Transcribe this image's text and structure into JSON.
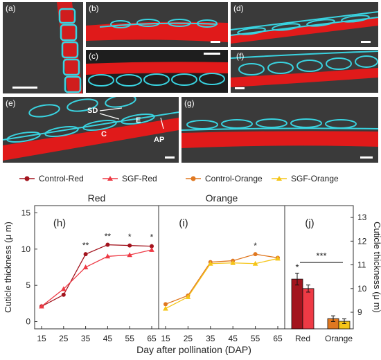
{
  "micrographs": {
    "a": {
      "label": "(a)"
    },
    "b": {
      "label": "(b)"
    },
    "c": {
      "label": "(c)"
    },
    "d": {
      "label": "(d)"
    },
    "e": {
      "label": "(e)",
      "annotations": [
        "SD",
        "E",
        "C",
        "AP"
      ]
    },
    "f": {
      "label": "(f)"
    },
    "g": {
      "label": "(g)"
    }
  },
  "colors": {
    "micrograph_background": "#3a3a3a",
    "cuticle": "#e01a1a",
    "cell_wall": "#39d3e0"
  },
  "chart_data": {
    "type": "line",
    "legend": [
      {
        "name": "Control-Red",
        "color": "#a3141e",
        "marker": "circle"
      },
      {
        "name": "SGF-Red",
        "color": "#ee3a45",
        "marker": "triangle"
      },
      {
        "name": "Control-Orange",
        "color": "#e07820",
        "marker": "circle"
      },
      {
        "name": "SGF-Orange",
        "color": "#f5c518",
        "marker": "triangle"
      }
    ],
    "ylabel_left": "Cuticle thickness (μ m)",
    "ylabel_right": "Cuticle thickness (μ m)",
    "xlabel": "Day after pollination (DAP)",
    "panels": [
      {
        "id": "h",
        "label": "(h)",
        "title": "Red",
        "x": [
          15,
          25,
          35,
          45,
          55,
          65
        ],
        "ylim": [
          -1,
          16
        ],
        "yticks": [
          0,
          5,
          10,
          15
        ],
        "series": [
          {
            "name": "Control-Red",
            "values": [
              2.1,
              3.7,
              9.3,
              10.6,
              10.5,
              10.4
            ],
            "err": [
              0.15,
              0.2,
              0.25,
              0.2,
              0.25,
              0.3
            ]
          },
          {
            "name": "SGF-Red",
            "values": [
              2.1,
              4.5,
              7.5,
              9.0,
              9.2,
              9.9
            ],
            "err": [
              0.15,
              0.2,
              0.3,
              0.2,
              0.2,
              0.3
            ]
          }
        ],
        "significance": [
          {
            "x": 35,
            "label": "**"
          },
          {
            "x": 45,
            "label": "**"
          },
          {
            "x": 55,
            "label": "*"
          },
          {
            "x": 65,
            "label": "*"
          }
        ]
      },
      {
        "id": "i",
        "label": "(i)",
        "title": "Orange",
        "x": [
          15,
          25,
          35,
          45,
          55,
          65
        ],
        "ylim": [
          -1,
          16
        ],
        "series": [
          {
            "name": "Control-Orange",
            "values": [
              2.4,
              3.6,
              8.2,
              8.4,
              9.3,
              8.8
            ],
            "err": [
              0.15,
              0.15,
              0.2,
              0.2,
              0.2,
              0.2
            ]
          },
          {
            "name": "SGF-Orange",
            "values": [
              1.8,
              3.4,
              8.0,
              8.1,
              8.0,
              8.7
            ],
            "err": [
              0.15,
              0.15,
              0.2,
              0.2,
              0.2,
              0.2
            ]
          }
        ],
        "significance": [
          {
            "x": 55,
            "label": "*"
          }
        ]
      },
      {
        "id": "j",
        "label": "(j)",
        "type": "bar",
        "categories": [
          "Red",
          "Orange"
        ],
        "ylim": [
          8.3,
          13.5
        ],
        "yticks": [
          9,
          10,
          11,
          12,
          13
        ],
        "series": [
          {
            "name": "Control",
            "values": [
              10.4,
              8.73
            ],
            "err": [
              0.25,
              0.12
            ],
            "colors": [
              "#a3141e",
              "#e07820"
            ]
          },
          {
            "name": "SGF",
            "values": [
              10.0,
              8.62
            ],
            "err": [
              0.15,
              0.1
            ],
            "colors": [
              "#ee3a45",
              "#f5c518"
            ]
          }
        ],
        "significance": [
          {
            "label": "*",
            "target": "Red control"
          },
          {
            "label": "***",
            "target": "Red vs Orange"
          }
        ]
      }
    ]
  }
}
